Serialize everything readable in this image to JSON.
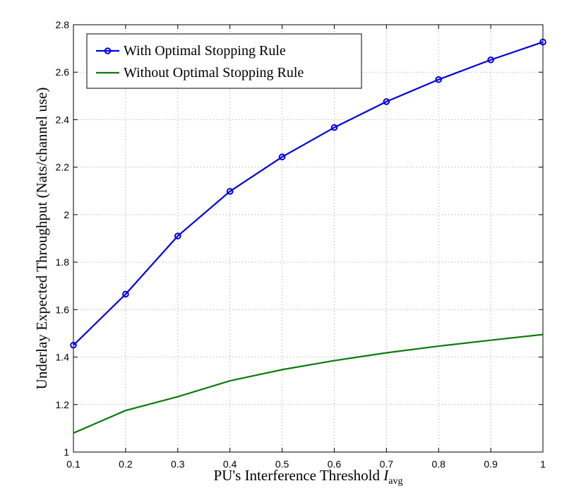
{
  "chart_data": {
    "type": "line",
    "xlabel_main": "PU's Interference Threshold ",
    "xlabel_math": "I",
    "xlabel_sub": "avg",
    "ylabel": "Underlay Expected Throughput (Nats/channel use)",
    "x": [
      0.1,
      0.2,
      0.3,
      0.4,
      0.5,
      0.6,
      0.7,
      0.8,
      0.9,
      1.0
    ],
    "xlim": [
      0.1,
      1.0
    ],
    "ylim": [
      1.0,
      2.8
    ],
    "xticks": [
      0.1,
      0.2,
      0.3,
      0.4,
      0.5,
      0.6,
      0.7,
      0.8,
      0.9,
      1
    ],
    "xtick_labels": [
      "0.1",
      "0.2",
      "0.3",
      "0.4",
      "0.5",
      "0.6",
      "0.7",
      "0.8",
      "0.9",
      "1"
    ],
    "yticks": [
      1,
      1.2,
      1.4,
      1.6,
      1.8,
      2,
      2.2,
      2.4,
      2.6,
      2.8
    ],
    "ytick_labels": [
      "1",
      "1.2",
      "1.4",
      "1.6",
      "1.8",
      "2",
      "2.2",
      "2.4",
      "2.6",
      "2.8"
    ],
    "grid": true,
    "legend_position": "top-left",
    "series": [
      {
        "name": "With Optimal Stopping Rule",
        "color": "#0000e0",
        "marker": "circle",
        "values": [
          1.45,
          1.665,
          1.91,
          2.098,
          2.243,
          2.367,
          2.476,
          2.569,
          2.652,
          2.727
        ]
      },
      {
        "name": "Without Optimal Stopping Rule",
        "color": "#0b7a0b",
        "marker": "none",
        "values": [
          1.08,
          1.175,
          1.233,
          1.3,
          1.347,
          1.385,
          1.418,
          1.446,
          1.471,
          1.495
        ]
      }
    ]
  }
}
